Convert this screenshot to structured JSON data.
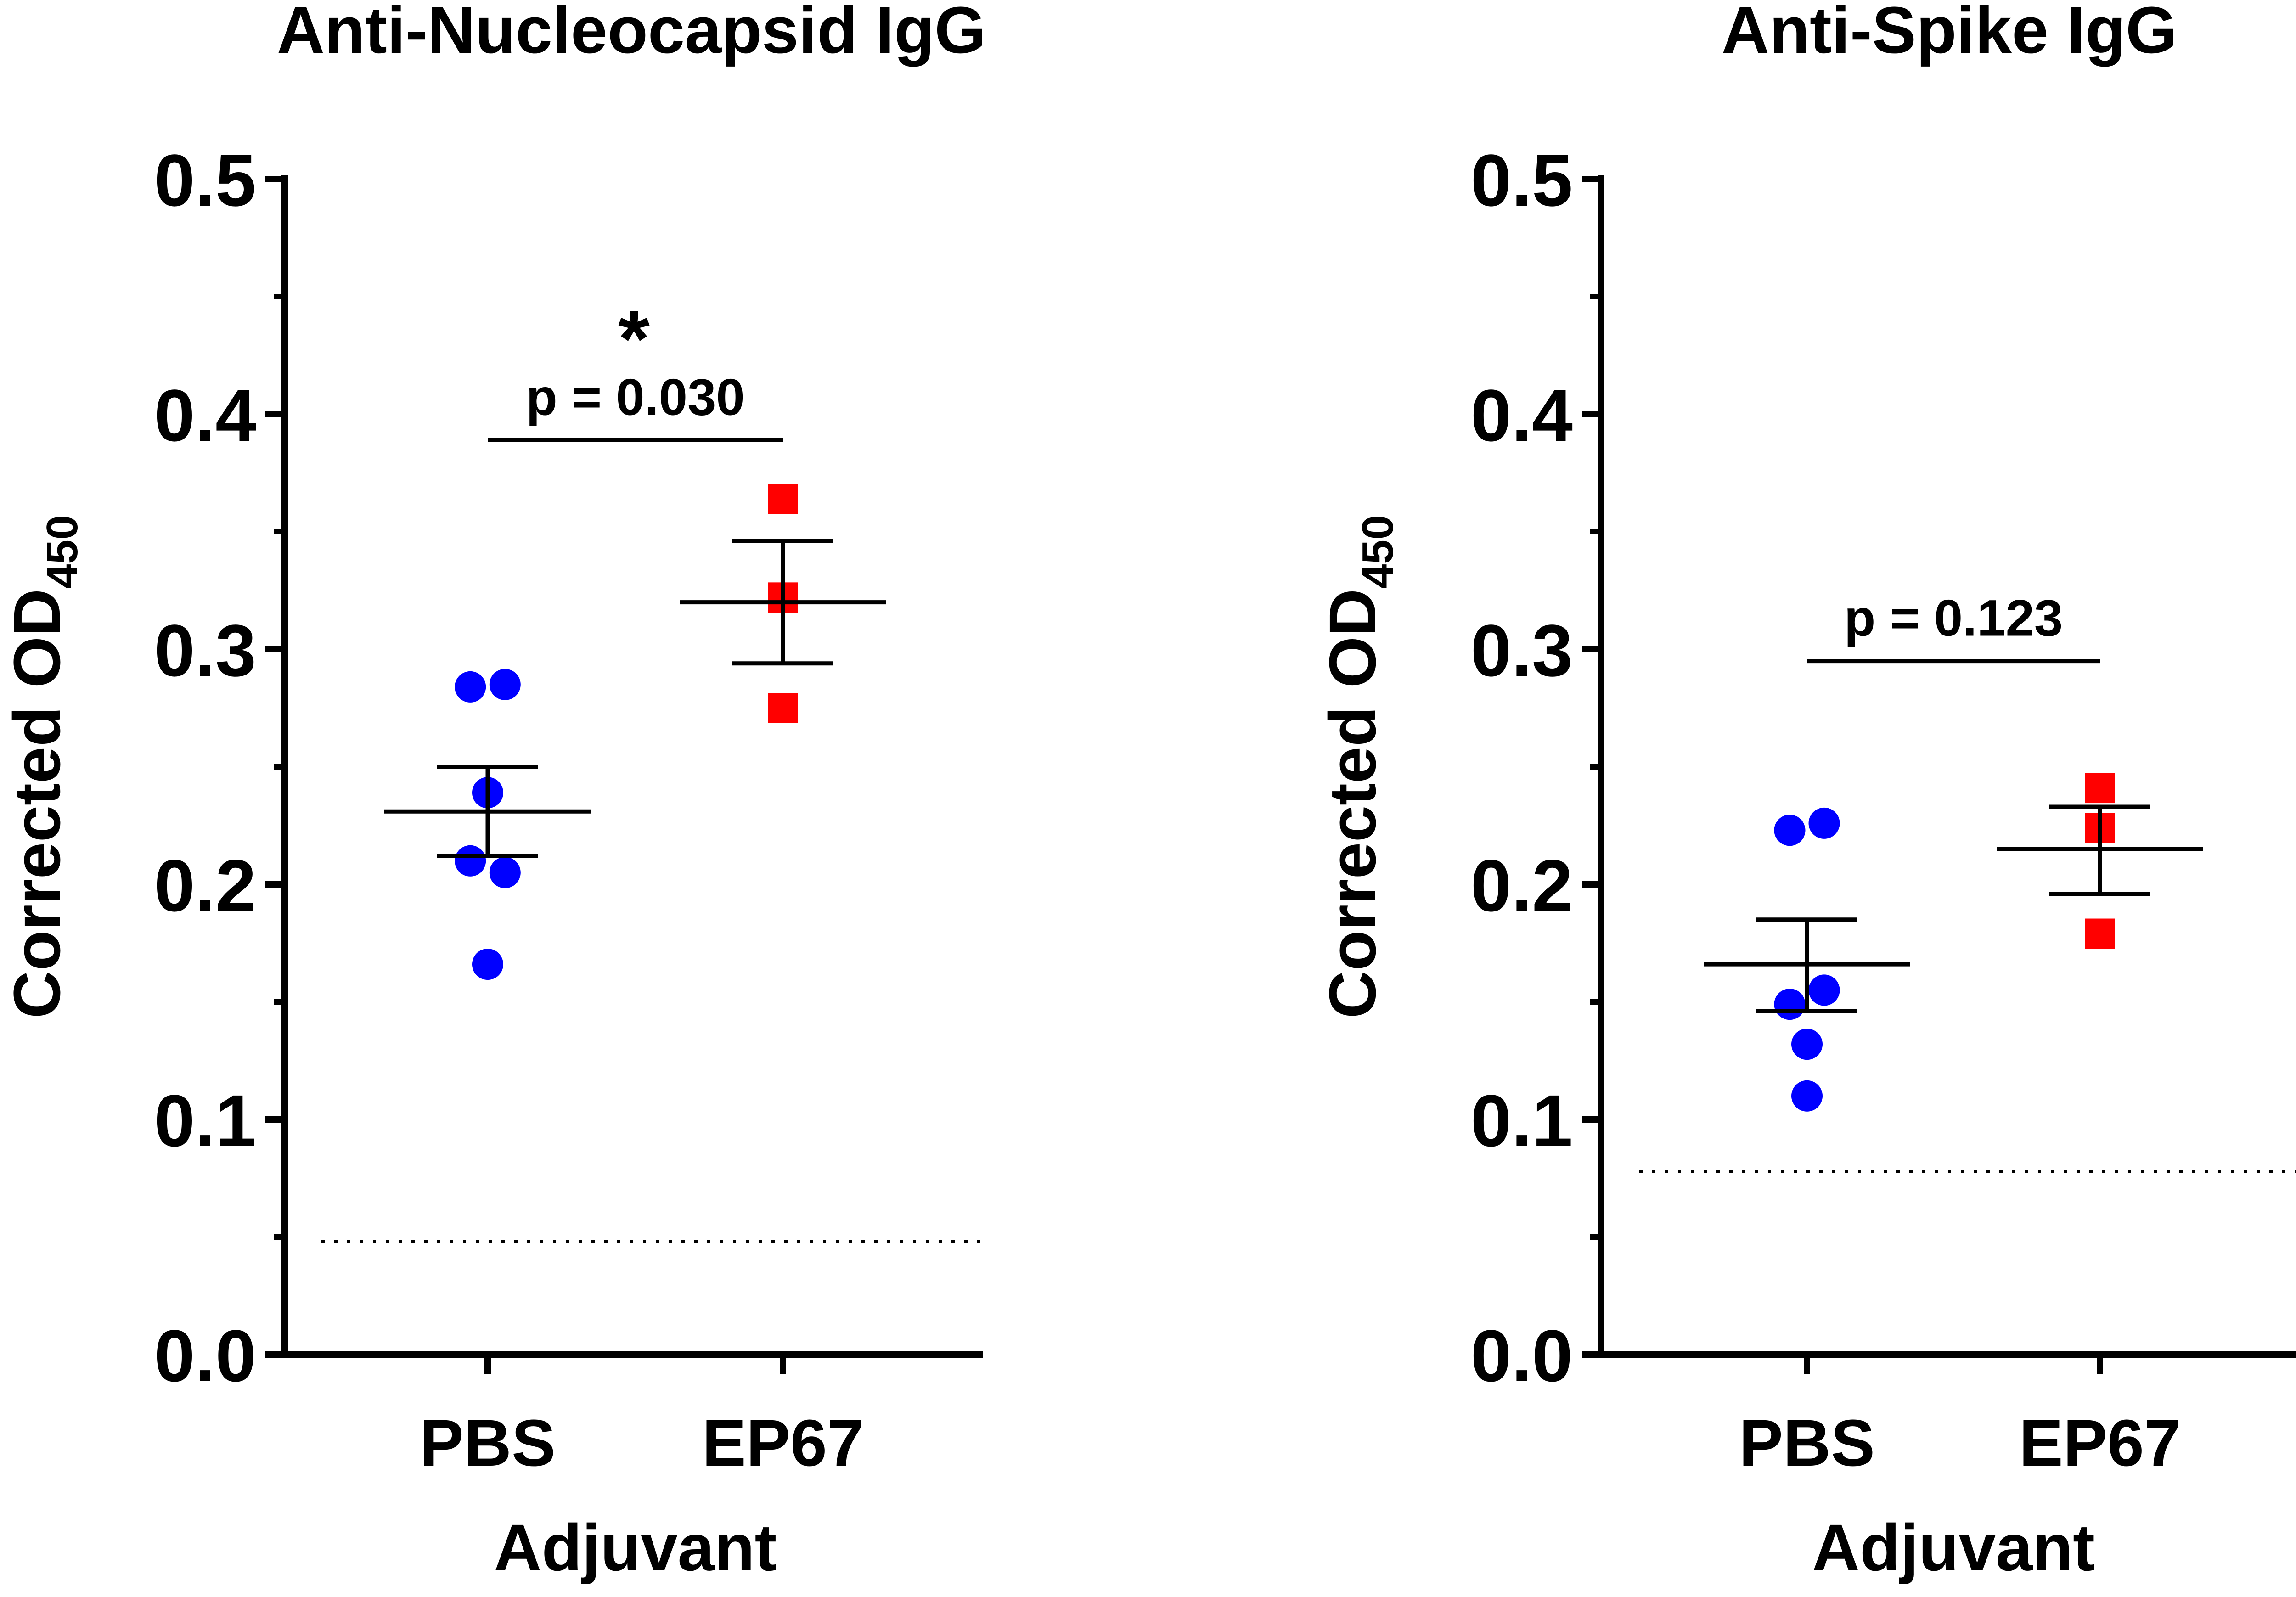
{
  "chart_data": [
    {
      "type": "scatter",
      "title": "Anti-Nucleocapsid IgG",
      "ylabel": "Corrected OD",
      "ylabel_subscript": "450",
      "xlabel": "Adjuvant",
      "categories": [
        "PBS",
        "EP67"
      ],
      "ylim": [
        0.0,
        0.5
      ],
      "yticks": [
        "0.0",
        "0.1",
        "0.2",
        "0.3",
        "0.4",
        "0.5"
      ],
      "ytick_values": [
        0.0,
        0.1,
        0.2,
        0.3,
        0.4,
        0.5
      ],
      "series": [
        {
          "name": "PBS",
          "marker": "circle",
          "color": "#0000ff",
          "points": [
            {
              "x": 0,
              "jitter": -0.06,
              "y": 0.284
            },
            {
              "x": 0,
              "jitter": 0.06,
              "y": 0.285
            },
            {
              "x": 0,
              "jitter": 0.0,
              "y": 0.239
            },
            {
              "x": 0,
              "jitter": -0.06,
              "y": 0.21
            },
            {
              "x": 0,
              "jitter": 0.06,
              "y": 0.205
            },
            {
              "x": 0,
              "jitter": 0.0,
              "y": 0.166
            }
          ],
          "mean": 0.231,
          "sem_low": 0.212,
          "sem_high": 0.25
        },
        {
          "name": "EP67",
          "marker": "square",
          "color": "#ff0000",
          "points": [
            {
              "x": 1,
              "jitter": 0.0,
              "y": 0.364
            },
            {
              "x": 1,
              "jitter": 0.0,
              "y": 0.322
            },
            {
              "x": 1,
              "jitter": 0.0,
              "y": 0.275
            }
          ],
          "mean": 0.32,
          "sem_low": 0.294,
          "sem_high": 0.346
        }
      ],
      "threshold": 0.048,
      "comparison": {
        "label": "p = 0.030",
        "significance": "*",
        "y": 0.389
      }
    },
    {
      "type": "scatter",
      "title": "Anti-Spike IgG",
      "ylabel": "Corrected OD",
      "ylabel_subscript": "450",
      "xlabel": "Adjuvant",
      "categories": [
        "PBS",
        "EP67"
      ],
      "ylim": [
        0.0,
        0.5
      ],
      "yticks": [
        "0.0",
        "0.1",
        "0.2",
        "0.3",
        "0.4",
        "0.5"
      ],
      "ytick_values": [
        0.0,
        0.1,
        0.2,
        0.3,
        0.4,
        0.5
      ],
      "series": [
        {
          "name": "PBS",
          "marker": "circle",
          "color": "#0000ff",
          "points": [
            {
              "x": 0,
              "jitter": -0.06,
              "y": 0.223
            },
            {
              "x": 0,
              "jitter": 0.06,
              "y": 0.226
            },
            {
              "x": 0,
              "jitter": 0.06,
              "y": 0.155
            },
            {
              "x": 0,
              "jitter": -0.06,
              "y": 0.149
            },
            {
              "x": 0,
              "jitter": 0.0,
              "y": 0.132
            },
            {
              "x": 0,
              "jitter": 0.0,
              "y": 0.11
            }
          ],
          "mean": 0.166,
          "sem_low": 0.146,
          "sem_high": 0.185
        },
        {
          "name": "EP67",
          "marker": "square",
          "color": "#ff0000",
          "points": [
            {
              "x": 1,
              "jitter": 0.0,
              "y": 0.241
            },
            {
              "x": 1,
              "jitter": 0.0,
              "y": 0.224
            },
            {
              "x": 1,
              "jitter": 0.0,
              "y": 0.179
            }
          ],
          "mean": 0.215,
          "sem_low": 0.196,
          "sem_high": 0.233
        }
      ],
      "threshold": 0.078,
      "comparison": {
        "label": "p = 0.123",
        "significance": "",
        "y": 0.295
      }
    }
  ]
}
